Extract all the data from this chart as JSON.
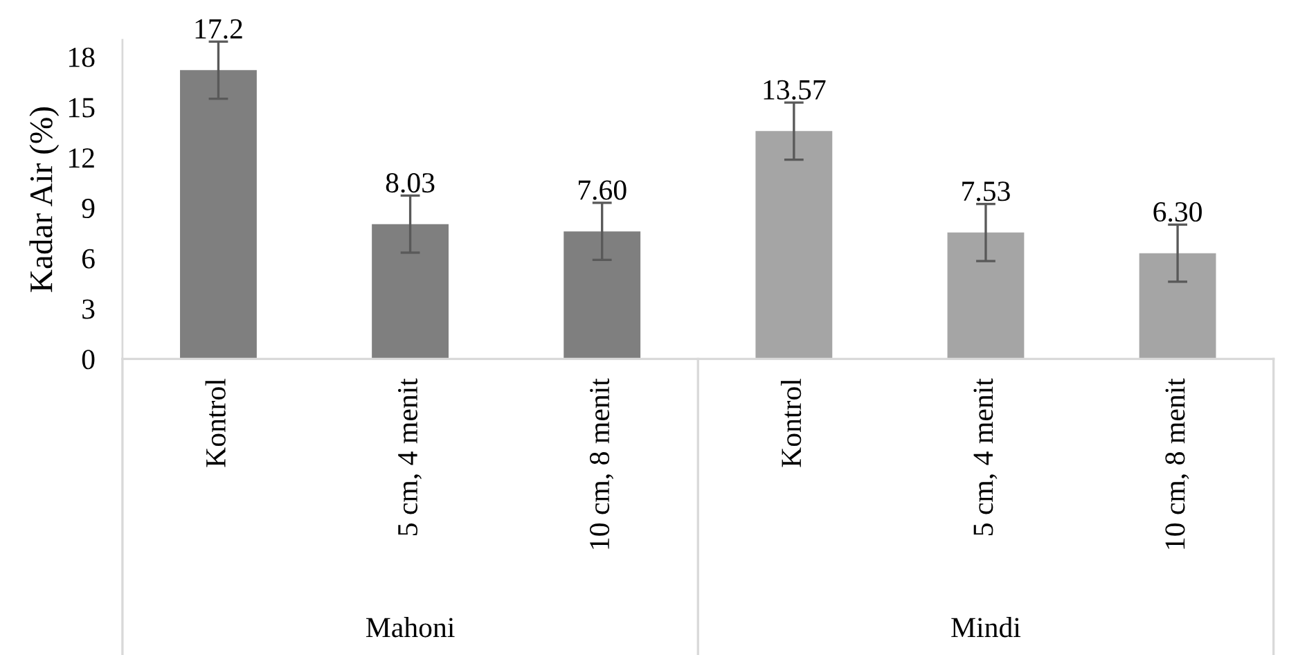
{
  "chart_data": {
    "type": "bar",
    "ylabel": "Kadar Air (%)",
    "categories": [
      "Kontrol",
      "5 cm, 4 menit",
      "10 cm, 8 menit",
      "Kontrol",
      "5 cm, 4 menit",
      "10 cm, 8 menit"
    ],
    "values": [
      17.2,
      8.03,
      7.6,
      13.57,
      7.53,
      6.3
    ],
    "colors": [
      "#7f7f7f",
      "#7f7f7f",
      "#7f7f7f",
      "#a5a5a5",
      "#a5a5a5",
      "#a5a5a5"
    ],
    "errors": [
      1.7,
      1.7,
      1.7,
      1.7,
      1.7,
      1.7
    ],
    "value_labels": [
      "17.2",
      "8.03",
      "7.60",
      "13.57",
      "7.53",
      "6.30"
    ],
    "annotations": [
      "Mahoni",
      "Mindi"
    ],
    "ylim": [
      0,
      19
    ],
    "yticks": [
      0,
      3,
      6,
      9,
      12,
      15,
      18
    ],
    "grid": false
  }
}
